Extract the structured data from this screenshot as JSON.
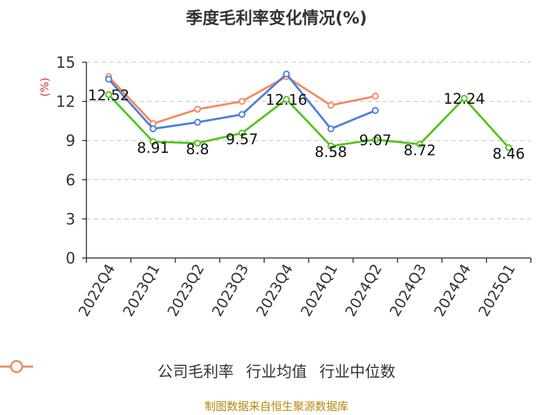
{
  "title": "季度毛利率变化情况(%)",
  "source": "制图数据来自恒生聚源数据库",
  "chart_data": {
    "type": "line",
    "title": "季度毛利率变化情况(%)",
    "ylabel": "(%)",
    "ylim": [
      0,
      15
    ],
    "yticks": [
      0,
      3,
      6,
      9,
      12,
      15
    ],
    "grid": true,
    "legend_position": "bottom",
    "categories": [
      "2022Q4",
      "2023Q1",
      "2023Q2",
      "2023Q3",
      "2023Q4",
      "2024Q1",
      "2024Q2",
      "2024Q3",
      "2024Q4",
      "2025Q1"
    ],
    "series": [
      {
        "name": "公司毛利率",
        "color": "#52c41a",
        "values": [
          12.52,
          8.91,
          8.8,
          9.57,
          12.16,
          8.58,
          9.07,
          8.72,
          12.24,
          8.46
        ],
        "labels": [
          "12.52",
          "8.91",
          "8.8",
          "9.57",
          "12.16",
          "8.58",
          "9.07",
          "8.72",
          "12.24",
          "8.46"
        ]
      },
      {
        "name": "行业均值",
        "color": "#4a7fdb",
        "values": [
          13.7,
          9.9,
          10.4,
          11.0,
          14.1,
          9.9,
          11.3,
          null,
          null,
          null
        ]
      },
      {
        "name": "行业中位数",
        "color": "#f4895f",
        "values": [
          13.9,
          10.3,
          11.4,
          12.0,
          13.9,
          11.7,
          12.4,
          null,
          null,
          null
        ]
      }
    ]
  }
}
